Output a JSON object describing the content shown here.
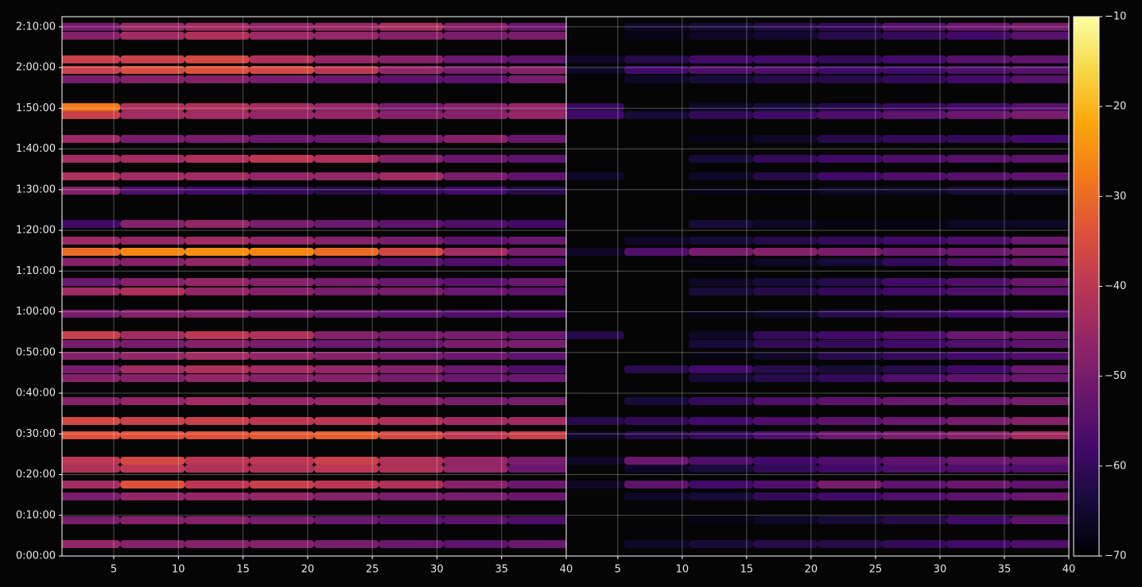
{
  "chart_data": {
    "type": "heatmap",
    "ylim": [
      0,
      7950
    ],
    "yticks": [
      {
        "value": 0,
        "label": "0:00:00"
      },
      {
        "value": 600,
        "label": "0:10:00"
      },
      {
        "value": 1200,
        "label": "0:20:00"
      },
      {
        "value": 1800,
        "label": "0:30:00"
      },
      {
        "value": 2400,
        "label": "0:40:00"
      },
      {
        "value": 3000,
        "label": "0:50:00"
      },
      {
        "value": 3600,
        "label": "1:00:00"
      },
      {
        "value": 4200,
        "label": "1:10:00"
      },
      {
        "value": 4800,
        "label": "1:20:00"
      },
      {
        "value": 5400,
        "label": "1:30:00"
      },
      {
        "value": 6000,
        "label": "1:40:00"
      },
      {
        "value": 6600,
        "label": "1:50:00"
      },
      {
        "value": 7200,
        "label": "2:00:00"
      },
      {
        "value": 7800,
        "label": "2:10:00"
      }
    ],
    "x": [
      3,
      8,
      13,
      18,
      23,
      28,
      33,
      38
    ],
    "y": [
      7800,
      7670,
      7320,
      7166,
      7026,
      6616,
      6500,
      6148,
      5855,
      5597,
      5386,
      4895,
      4649,
      4485,
      4333,
      4040,
      3900,
      3572,
      3255,
      3126,
      2951,
      2752,
      2623,
      2283,
      1990,
      1780,
      1405,
      1288,
      1054,
      878,
      527,
      176
    ],
    "grid": true,
    "colorbar": {
      "lim": [
        -70,
        -10
      ],
      "ticks": [
        {
          "value": -70,
          "label": "−70"
        },
        {
          "value": -60,
          "label": "−60"
        },
        {
          "value": -50,
          "label": "−50"
        },
        {
          "value": -40,
          "label": "−40"
        },
        {
          "value": -30,
          "label": "−30"
        },
        {
          "value": -20,
          "label": "−20"
        },
        {
          "value": -10,
          "label": "−10"
        }
      ]
    },
    "panels": [
      {
        "xlim": [
          1,
          40
        ],
        "xticks": [
          5,
          10,
          15,
          20,
          25,
          30,
          35,
          40
        ],
        "values": [
          [
            -50,
            -45,
            -44,
            -46,
            -45,
            -43,
            -48,
            -52
          ],
          [
            -48,
            -44,
            -42,
            -45,
            -46,
            -48,
            -50,
            -50
          ],
          [
            -38,
            -38,
            -36,
            -42,
            -46,
            -48,
            -52,
            -54
          ],
          [
            -38,
            -35,
            -34,
            -36,
            -40,
            -46,
            -50,
            -48
          ],
          [
            -50,
            -48,
            -48,
            -50,
            -52,
            -54,
            -54,
            -50
          ],
          [
            -28,
            -42,
            -42,
            -44,
            -46,
            -50,
            -48,
            -46
          ],
          [
            -38,
            -44,
            -44,
            -46,
            -46,
            -48,
            -48,
            -46
          ],
          [
            -45,
            -50,
            -50,
            -52,
            -52,
            -50,
            -48,
            -52
          ],
          [
            -44,
            -44,
            -42,
            -40,
            -42,
            -48,
            -52,
            -54
          ],
          [
            -42,
            -44,
            -44,
            -46,
            -46,
            -44,
            -50,
            -54
          ],
          [
            -48,
            -56,
            -58,
            -60,
            -62,
            -60,
            -58,
            -62
          ],
          [
            -58,
            -48,
            -46,
            -50,
            -52,
            -54,
            -56,
            -58
          ],
          [
            -45,
            -46,
            -44,
            -46,
            -48,
            -50,
            -54,
            -52
          ],
          [
            -30,
            -26,
            -25,
            -26,
            -30,
            -36,
            -44,
            -50
          ],
          [
            -48,
            -48,
            -46,
            -50,
            -52,
            -54,
            -56,
            -56
          ],
          [
            -52,
            -48,
            -46,
            -48,
            -50,
            -52,
            -54,
            -52
          ],
          [
            -44,
            -42,
            -46,
            -48,
            -50,
            -50,
            -52,
            -54
          ],
          [
            -50,
            -48,
            -48,
            -50,
            -52,
            -54,
            -56,
            -56
          ],
          [
            -38,
            -44,
            -40,
            -42,
            -48,
            -50,
            -50,
            -52
          ],
          [
            -50,
            -50,
            -48,
            -50,
            -52,
            -52,
            -50,
            -50
          ],
          [
            -48,
            -46,
            -44,
            -46,
            -48,
            -50,
            -52,
            -54
          ],
          [
            -50,
            -44,
            -42,
            -44,
            -46,
            -48,
            -52,
            -56
          ],
          [
            -48,
            -48,
            -46,
            -48,
            -48,
            -50,
            -52,
            -52
          ],
          [
            -48,
            -46,
            -44,
            -46,
            -46,
            -48,
            -50,
            -50
          ],
          [
            -36,
            -38,
            -38,
            -40,
            -40,
            -42,
            -44,
            -44
          ],
          [
            -34,
            -34,
            -34,
            -33,
            -32,
            -36,
            -40,
            -38
          ],
          [
            -40,
            -36,
            -40,
            -40,
            -38,
            -42,
            -46,
            -50
          ],
          [
            -42,
            -40,
            -42,
            -42,
            -40,
            -42,
            -46,
            -52
          ],
          [
            -44,
            -34,
            -40,
            -38,
            -40,
            -42,
            -48,
            -52
          ],
          [
            -50,
            -46,
            -46,
            -46,
            -48,
            -50,
            -50,
            -52
          ],
          [
            -50,
            -48,
            -48,
            -50,
            -52,
            -54,
            -54,
            -56
          ],
          [
            -46,
            -48,
            -48,
            -48,
            -50,
            -52,
            -54,
            -52
          ]
        ]
      },
      {
        "xlim": [
          1,
          40
        ],
        "xticks": [
          5,
          10,
          15,
          20,
          25,
          30,
          35,
          40
        ],
        "values": [
          [
            null,
            -66,
            -64,
            -62,
            -60,
            -55,
            -52,
            -50
          ],
          [
            null,
            -68,
            -66,
            -65,
            -62,
            -60,
            -58,
            -55
          ],
          [
            -66,
            -62,
            -58,
            -58,
            -60,
            -58,
            -55,
            -54
          ],
          [
            -66,
            -58,
            -56,
            -56,
            -58,
            -58,
            -56,
            -55
          ],
          [
            null,
            -66,
            -64,
            -62,
            -62,
            -60,
            -58,
            -55
          ],
          [
            -60,
            null,
            -66,
            -64,
            -62,
            -60,
            -58,
            -55
          ],
          [
            -58,
            -64,
            -60,
            -58,
            -56,
            -54,
            -52,
            -50
          ],
          [
            null,
            null,
            -68,
            -66,
            -62,
            -60,
            -60,
            -58
          ],
          [
            null,
            null,
            -64,
            -60,
            -58,
            -56,
            -55,
            -54
          ],
          [
            -66,
            null,
            -66,
            -62,
            -58,
            -56,
            -55,
            -54
          ],
          [
            null,
            null,
            -68,
            -68,
            -66,
            -66,
            -64,
            -64
          ],
          [
            null,
            null,
            -64,
            -66,
            -68,
            -68,
            -66,
            -66
          ],
          [
            null,
            -66,
            -64,
            -62,
            -60,
            -58,
            -56,
            -52
          ],
          [
            -66,
            -56,
            -50,
            -48,
            -50,
            -52,
            -52,
            -50
          ],
          [
            null,
            null,
            -68,
            -66,
            -64,
            -60,
            -56,
            -52
          ],
          [
            null,
            null,
            -66,
            -64,
            -62,
            -58,
            -56,
            -52
          ],
          [
            null,
            null,
            -64,
            -62,
            -60,
            -58,
            -56,
            -54
          ],
          [
            null,
            null,
            -68,
            -66,
            -62,
            -60,
            -58,
            -56
          ],
          [
            -62,
            null,
            -66,
            -60,
            -58,
            -56,
            -52,
            -52
          ],
          [
            null,
            null,
            -64,
            -60,
            -60,
            -58,
            -56,
            -54
          ],
          [
            null,
            null,
            -68,
            -66,
            -62,
            -60,
            -58,
            -56
          ],
          [
            null,
            -62,
            -58,
            -62,
            -64,
            -62,
            -58,
            -52
          ],
          [
            null,
            null,
            -64,
            -62,
            -60,
            -56,
            -54,
            -52
          ],
          [
            null,
            -64,
            -60,
            -56,
            -54,
            -52,
            -52,
            -50
          ],
          [
            -62,
            -60,
            -58,
            -56,
            -54,
            -52,
            -50,
            -48
          ],
          [
            -66,
            -62,
            -60,
            -56,
            -52,
            -50,
            -48,
            -44
          ],
          [
            -66,
            -52,
            -56,
            -58,
            -56,
            -54,
            -52,
            -52
          ],
          [
            null,
            -66,
            -64,
            -60,
            -58,
            -56,
            -56,
            -56
          ],
          [
            -66,
            -54,
            -58,
            -56,
            -50,
            -54,
            -52,
            -54
          ],
          [
            null,
            -66,
            -64,
            -60,
            -58,
            -56,
            -54,
            -52
          ],
          [
            null,
            null,
            -68,
            -66,
            -64,
            -62,
            -58,
            -54
          ],
          [
            null,
            -66,
            -64,
            -62,
            -62,
            -60,
            -58,
            -56
          ]
        ]
      }
    ]
  }
}
